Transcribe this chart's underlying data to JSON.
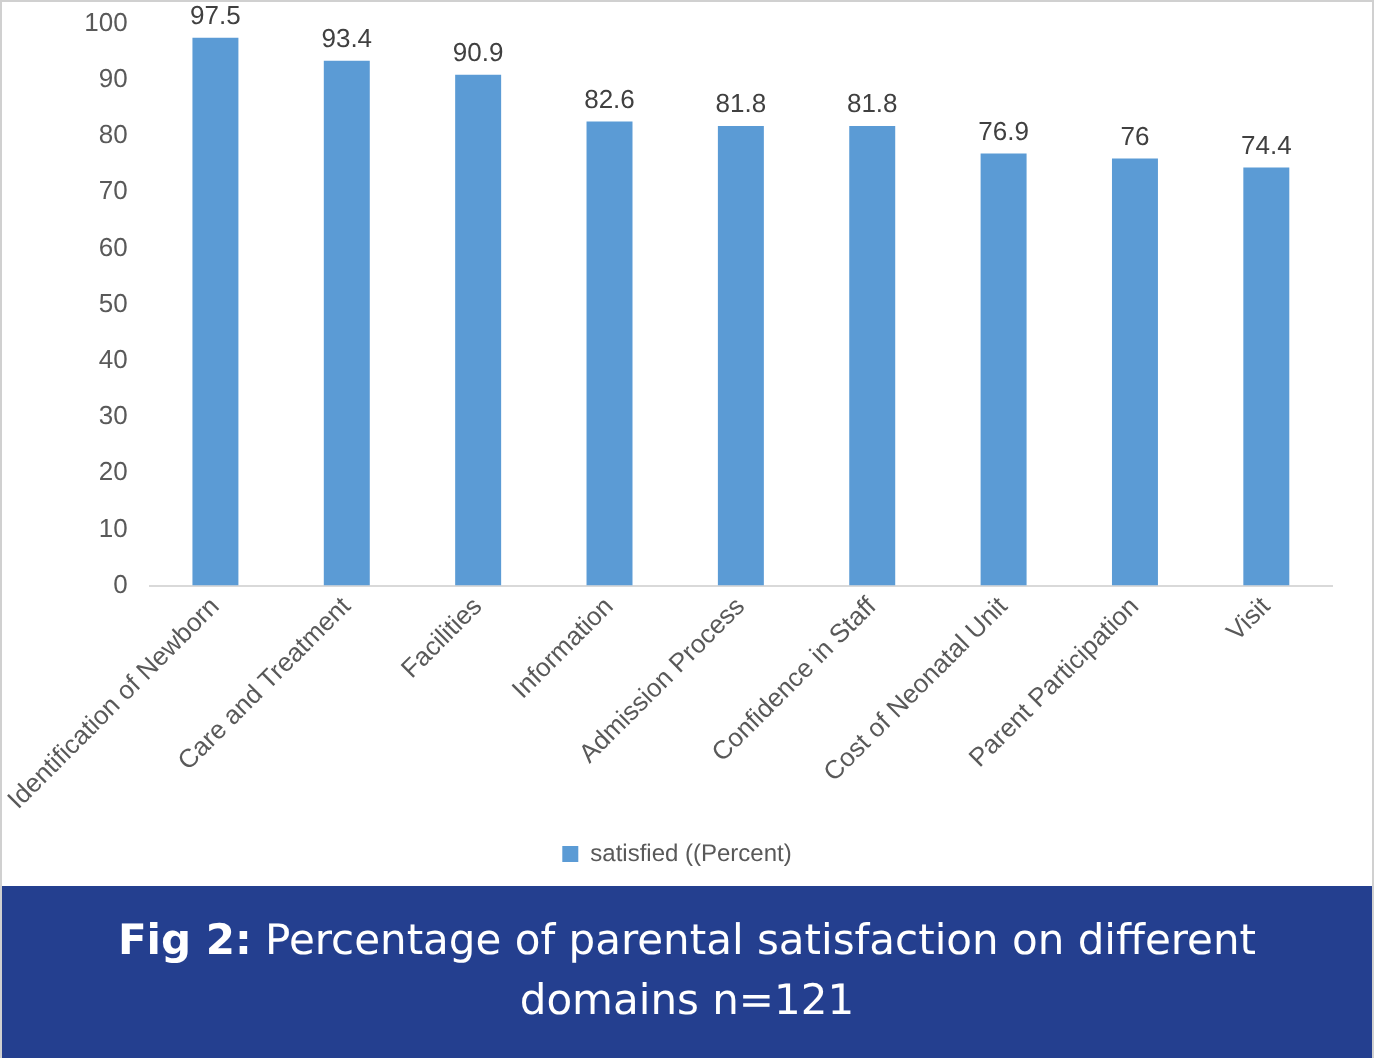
{
  "chart_data": {
    "type": "bar",
    "title": "Fig 2: Percentage of parental satisfaction on different domains n=121",
    "categories": [
      "Identification of Newborn",
      "Care and Treatment",
      "Facilities",
      "Information",
      "Admission Process",
      "Confidence in Staff",
      "Cost of Neonatal Unit",
      "Parent Participation",
      "Visit"
    ],
    "series": [
      {
        "name": "satisfied ((Percent)",
        "color": "#5b9bd5",
        "values": [
          97.5,
          93.4,
          90.9,
          82.6,
          81.8,
          81.8,
          76.9,
          76,
          74.4
        ]
      }
    ],
    "ylim": [
      0,
      100
    ],
    "yticks": [
      0,
      10,
      20,
      30,
      40,
      50,
      60,
      70,
      80,
      90,
      100
    ],
    "grid": false,
    "legend": "bottom",
    "data_labels": true
  }
}
